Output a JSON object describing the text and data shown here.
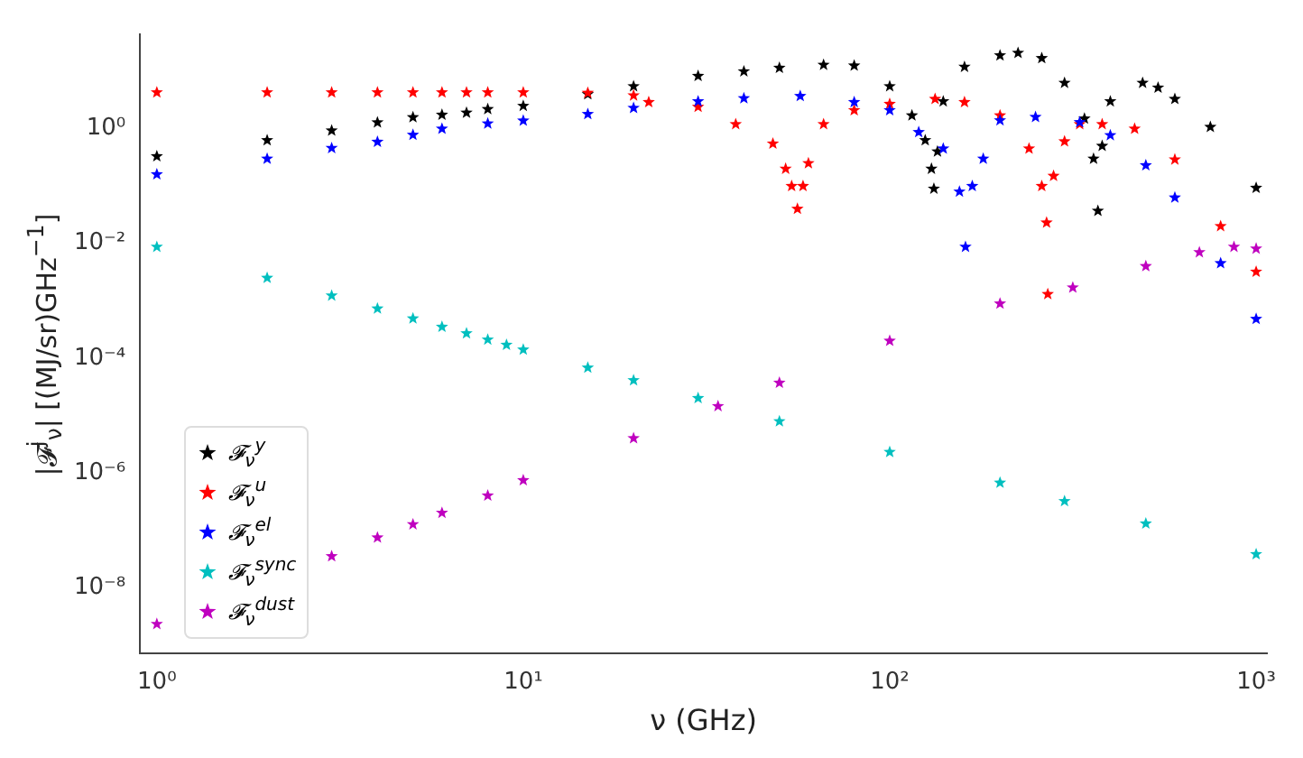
{
  "chart_data": {
    "type": "scatter",
    "xlabel": "ν (GHz)",
    "ylabel": "|𝓕$^{j}$$_{ν}$| [(MJ/sr)GHz$^{−1}$]",
    "log": "xy",
    "xlim": [
      0.9,
      1070
    ],
    "ylim": [
      7e-10,
      45
    ],
    "xticks": [
      {
        "value": 1,
        "label": "10⁰"
      },
      {
        "value": 10,
        "label": "10¹"
      },
      {
        "value": 100,
        "label": "10²"
      },
      {
        "value": 1000,
        "label": "10³"
      }
    ],
    "yticks": [
      {
        "value": 1e-08,
        "label": "10⁻⁸"
      },
      {
        "value": 1e-06,
        "label": "10⁻⁶"
      },
      {
        "value": 0.0001,
        "label": "10⁻⁴"
      },
      {
        "value": 0.01,
        "label": "10⁻²"
      },
      {
        "value": 1,
        "label": "10⁰"
      }
    ],
    "grid": false,
    "legend": "bottom left",
    "marker": "star",
    "series": [
      {
        "name": "𝓕$_{ν}$$^{y}$",
        "color": "#000000",
        "x": [
          1,
          2,
          3,
          4,
          5,
          6,
          7,
          8,
          10,
          15,
          20,
          30,
          40,
          50,
          66,
          80,
          100,
          115,
          125,
          130,
          132,
          135,
          140,
          160,
          200,
          224,
          260,
          300,
          340,
          360,
          370,
          380,
          400,
          490,
          540,
          600,
          750,
          1000
        ],
        "values": [
          0.33,
          0.63,
          0.93,
          1.29,
          1.58,
          1.75,
          1.9,
          2.19,
          2.5,
          4.0,
          5.5,
          8.3,
          10,
          11.5,
          13,
          12.6,
          5.5,
          1.7,
          0.63,
          0.2,
          0.09,
          0.4,
          3.0,
          12,
          19,
          21,
          17,
          6.3,
          1.5,
          0.3,
          0.037,
          0.5,
          3.0,
          6.3,
          5.2,
          3.3,
          1.07,
          0.093
        ]
      },
      {
        "name": "𝓕$_{ν}$$^{u}$",
        "color": "#ff0000",
        "x": [
          1,
          2,
          3,
          4,
          5,
          6,
          7,
          8,
          10,
          15,
          20,
          22,
          30,
          38,
          48,
          52,
          54,
          56,
          58,
          60,
          66,
          80,
          100,
          133,
          160,
          200,
          240,
          260,
          268,
          270,
          280,
          300,
          330,
          380,
          466,
          600,
          800,
          1000
        ],
        "values": [
          4.3,
          4.3,
          4.3,
          4.3,
          4.3,
          4.3,
          4.3,
          4.3,
          4.3,
          4.2,
          3.8,
          2.9,
          2.4,
          1.2,
          0.55,
          0.2,
          0.1,
          0.04,
          0.1,
          0.25,
          1.2,
          2.1,
          2.7,
          3.3,
          2.9,
          1.7,
          0.45,
          0.1,
          0.023,
          0.0013,
          0.15,
          0.6,
          1.2,
          1.2,
          1.0,
          0.29,
          0.02,
          0.0032
        ]
      },
      {
        "name": "𝓕$_{ν}$$^{el}$",
        "color": "#0000ff",
        "x": [
          1,
          2,
          3,
          4,
          5,
          6,
          8,
          10,
          15,
          20,
          30,
          40,
          57,
          80,
          100,
          120,
          140,
          155,
          161,
          168,
          180,
          200,
          250,
          330,
          400,
          500,
          600,
          800,
          1000
        ],
        "values": [
          0.16,
          0.3,
          0.46,
          0.59,
          0.78,
          1.0,
          1.23,
          1.38,
          1.8,
          2.3,
          3.0,
          3.4,
          3.7,
          2.9,
          2.1,
          0.87,
          0.45,
          0.08,
          0.0087,
          0.1,
          0.3,
          1.4,
          1.6,
          1.3,
          0.77,
          0.23,
          0.063,
          0.0045,
          0.00048
        ]
      },
      {
        "name": "𝓕$_{ν}$$^{sync}$",
        "color": "#00bfbf",
        "x": [
          1,
          2,
          3,
          4,
          5,
          6,
          7,
          8,
          9,
          10,
          15,
          20,
          30,
          50,
          100,
          200,
          300,
          500,
          1000
        ],
        "values": [
          0.0087,
          0.0025,
          0.00123,
          0.00073,
          0.00049,
          0.00035,
          0.00027,
          0.00021,
          0.00017,
          0.00014,
          6.8e-05,
          4.1e-05,
          2e-05,
          7.9e-06,
          2.3e-06,
          6.7e-07,
          3.2e-07,
          1.3e-07,
          3.8e-08
        ]
      },
      {
        "name": "𝓕$_{ν}$$^{dust}$",
        "color": "#bf00bf",
        "x": [
          1,
          2,
          3,
          4,
          5,
          6,
          8,
          10,
          20,
          34,
          50,
          100,
          200,
          316,
          500,
          700,
          870,
          1000
        ],
        "values": [
          2.3e-09,
          null,
          3.5e-08,
          7.4e-08,
          1.26e-07,
          2e-07,
          4e-07,
          7.4e-07,
          4e-06,
          1.45e-05,
          3.7e-05,
          0.0002,
          0.00089,
          0.0017,
          0.004,
          0.007,
          0.0087,
          0.0081
        ]
      }
    ]
  }
}
